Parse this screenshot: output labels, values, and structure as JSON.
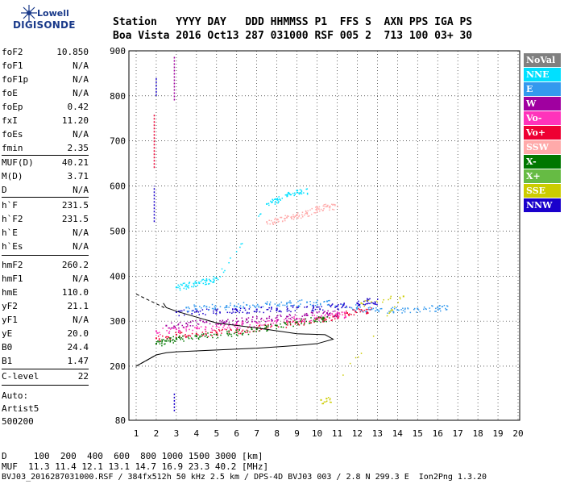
{
  "logo": {
    "line1": "Lowell",
    "line2": "DIGISONDE"
  },
  "header": {
    "row1": "Station   YYYY DAY   DDD HHMMSS P1  FFS S  AXN PPS IGA PS",
    "row2": "Boa Vista 2016 Oct13 287 031000 RSF 005 2  713 100 03+ 30"
  },
  "params": [
    {
      "k": "foF2",
      "v": "10.850"
    },
    {
      "k": "foF1",
      "v": "N/A"
    },
    {
      "k": "foF1p",
      "v": "N/A"
    },
    {
      "k": "foE",
      "v": "N/A"
    },
    {
      "k": "foEp",
      "v": "0.42"
    },
    {
      "k": "fxI",
      "v": "11.20"
    },
    {
      "k": "foEs",
      "v": "N/A"
    },
    {
      "k": "fmin",
      "v": "2.35"
    },
    {
      "k": "MUF(D)",
      "v": "40.21"
    },
    {
      "k": "M(D)",
      "v": "3.71"
    },
    {
      "k": "D",
      "v": "N/A"
    },
    {
      "k": "h`F",
      "v": "231.5"
    },
    {
      "k": "h`F2",
      "v": "231.5"
    },
    {
      "k": "h`E",
      "v": "N/A"
    },
    {
      "k": "h`Es",
      "v": "N/A"
    },
    {
      "k": "hmF2",
      "v": "260.2"
    },
    {
      "k": "hmF1",
      "v": "N/A"
    },
    {
      "k": "hmE",
      "v": "110.0"
    },
    {
      "k": "yF2",
      "v": "21.1"
    },
    {
      "k": "yF1",
      "v": "N/A"
    },
    {
      "k": "yE",
      "v": "20.0"
    },
    {
      "k": "B0",
      "v": "24.4"
    },
    {
      "k": "B1",
      "v": "1.47"
    },
    {
      "k": "C-level",
      "v": "22"
    }
  ],
  "auto": {
    "line1": "Auto:",
    "line2": "Artist5",
    "line3": "500200"
  },
  "legend": [
    {
      "label": "NoVal",
      "bg": "#808080",
      "fg": "#ffffff"
    },
    {
      "label": "NNE",
      "bg": "#00e0ff",
      "fg": "#ffffff"
    },
    {
      "label": "E",
      "bg": "#3399ee",
      "fg": "#ffffff"
    },
    {
      "label": "W",
      "bg": "#a000a0",
      "fg": "#ffffff"
    },
    {
      "label": "Vo-",
      "bg": "#ff33bb",
      "fg": "#ffffff"
    },
    {
      "label": "Vo+",
      "bg": "#ee0033",
      "fg": "#ffffff"
    },
    {
      "label": "SSW",
      "bg": "#ffaaaa",
      "fg": "#ffffff"
    },
    {
      "label": "X-",
      "bg": "#007700",
      "fg": "#ffffff"
    },
    {
      "label": "X+",
      "bg": "#66bb44",
      "fg": "#ffffff"
    },
    {
      "label": "SSE",
      "bg": "#cccc00",
      "fg": "#ffffff"
    },
    {
      "label": "NNW",
      "bg": "#1a00cc",
      "fg": "#ffffff"
    }
  ],
  "bottom": {
    "line1": "D     100  200  400  600  800 1000 1500 3000 [km]",
    "line2": "MUF  11.3 11.4 12.1 13.1 14.7 16.9 23.3 40.2 [MHz]",
    "line3": "BVJ03_2016287031000.RSF / 384fx512h 50 kHz 2.5 km / DPS-4D BVJ03 003 / 2.8 N 299.3 E  Ion2Png 1.3.20"
  },
  "chart_data": {
    "type": "scatter",
    "title": "",
    "xlabel": "",
    "ylabel": "",
    "xlim": [
      1,
      20
    ],
    "ylim": [
      80,
      900
    ],
    "xticks": [
      1,
      2,
      3,
      4,
      5,
      6,
      7,
      8,
      9,
      10,
      11,
      12,
      13,
      14,
      15,
      16,
      17,
      18,
      19,
      20
    ],
    "yticks": [
      80,
      200,
      300,
      400,
      500,
      600,
      700,
      800,
      900
    ],
    "series": [
      {
        "legend": "F-trace Vo+",
        "color": "#ee0033",
        "x": [
          2.0,
          3.0,
          4.0,
          5.0,
          6.0,
          7.0,
          8.0,
          9.0,
          10.0,
          10.8,
          11.5,
          12.2
        ],
        "y": [
          262,
          270,
          272,
          275,
          280,
          285,
          290,
          297,
          305,
          310,
          318,
          325
        ]
      },
      {
        "legend": "F-trace Vo-",
        "color": "#ff33bb",
        "x": [
          2.0,
          3.0,
          4.0,
          5.0,
          6.0,
          7.0,
          8.0,
          9.0,
          10.0,
          11.0
        ],
        "y": [
          278,
          282,
          285,
          288,
          292,
          296,
          300,
          305,
          308,
          315
        ]
      },
      {
        "legend": "F-trace W",
        "color": "#a000a0",
        "x": [
          2.5,
          3.5,
          4.5,
          5.5,
          6.5,
          7.5,
          8.5,
          9.5,
          10.5
        ],
        "y": [
          290,
          295,
          298,
          300,
          303,
          306,
          310,
          313,
          318
        ]
      },
      {
        "legend": "F-trace NNW",
        "color": "#1a00cc",
        "x": [
          3.0,
          4.0,
          5.0,
          6.0,
          7.0,
          8.0,
          9.0,
          10.0,
          11.0,
          12.0,
          12.5
        ],
        "y": [
          320,
          322,
          323,
          325,
          326,
          328,
          330,
          331,
          333,
          340,
          345
        ]
      },
      {
        "legend": "F-trace E",
        "color": "#3399ee",
        "x": [
          3.5,
          4.5,
          5.5,
          6.5,
          7.5,
          8.5,
          9.5,
          10.5,
          12.0,
          13.0,
          14.0,
          15.0,
          16.0
        ],
        "y": [
          330,
          332,
          334,
          336,
          338,
          340,
          342,
          344,
          330,
          325,
          325,
          328,
          330
        ]
      },
      {
        "legend": "F-trace NNE",
        "color": "#00e0ff",
        "x": [
          3.0,
          3.5,
          4.0,
          4.5,
          5.0,
          7.5,
          8.0,
          8.5,
          9.0
        ],
        "y": [
          375,
          380,
          385,
          390,
          395,
          560,
          570,
          580,
          590
        ]
      },
      {
        "legend": "F-trace SSW",
        "color": "#ffaaaa",
        "x": [
          7.5,
          8.0,
          8.5,
          9.0,
          9.5,
          10.0,
          10.5
        ],
        "y": [
          520,
          525,
          530,
          535,
          540,
          550,
          555
        ]
      },
      {
        "legend": "F-trace X-",
        "color": "#007700",
        "x": [
          2.0,
          2.5,
          3.0,
          4.0,
          5.0,
          6.0,
          7.0,
          8.0,
          9.0,
          10.0
        ],
        "y": [
          250,
          256,
          262,
          266,
          270,
          275,
          282,
          290,
          298,
          305
        ]
      },
      {
        "legend": "F-trace SSE",
        "color": "#cccc00",
        "x": [
          12.2,
          14.3,
          10.2
        ],
        "y": [
          340,
          355,
          125
        ]
      }
    ],
    "profile_line": {
      "x": [
        1.0,
        2.0,
        2.5,
        3.0,
        4.0,
        5.0,
        6.0,
        7.0,
        8.0,
        9.0,
        10.0,
        10.8,
        10.4,
        9.0,
        7.0,
        5.0,
        3.0,
        2.5,
        2.35
      ],
      "y": [
        200,
        225,
        230,
        232,
        234,
        236,
        238,
        240,
        243,
        246,
        250,
        260,
        270,
        272,
        285,
        296,
        322,
        330,
        340
      ]
    }
  }
}
